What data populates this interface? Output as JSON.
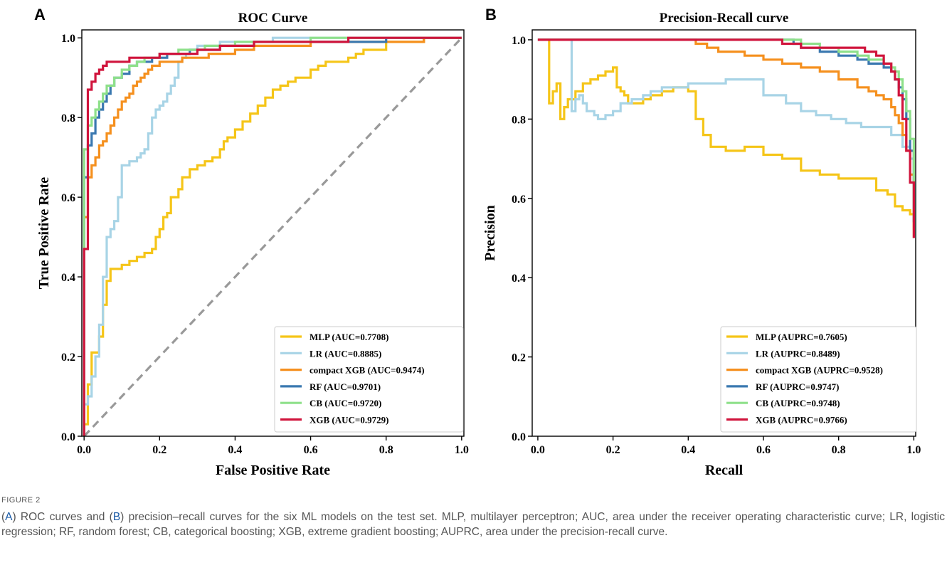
{
  "figure": {
    "label": "FIGURE 2",
    "caption_parts": [
      {
        "text": "(",
        "link": false
      },
      {
        "text": "A",
        "link": true
      },
      {
        "text": ") ROC curves and (",
        "link": false
      },
      {
        "text": "B",
        "link": true
      },
      {
        "text": ") precision–recall curves for the six ML models on the test set. MLP, multilayer perceptron; AUC, area under the receiver operating characteristic curve; LR, logistic regression; RF, random forest; CB, categorical boosting; XGB, extreme gradient boosting; AUPRC, area under the precision-recall curve.",
        "link": false
      }
    ]
  },
  "colors": {
    "MLP": "#f5c518",
    "LR": "#a8d4e6",
    "compact XGB": "#f5901e",
    "RF": "#3a78b0",
    "CB": "#8ee08a",
    "XGB": "#d0143c",
    "diagonal": "#999999",
    "link": "#1a5aa6"
  },
  "chart_data": [
    {
      "panel": "A",
      "type": "line",
      "title": "ROC Curve",
      "xlabel": "False Positive Rate",
      "ylabel": "True Positive Rate",
      "xlim": [
        0,
        1
      ],
      "ylim": [
        0,
        1.02
      ],
      "xticks": [
        "0.0",
        "0.2",
        "0.4",
        "0.6",
        "0.8",
        "1.0"
      ],
      "yticks": [
        "0.0",
        "0.2",
        "0.4",
        "0.6",
        "0.8",
        "1.0"
      ],
      "grid": false,
      "legend_position": "lower-right",
      "diagonal": true,
      "series": [
        {
          "name": "MLP (AUC=0.7708)",
          "key": "MLP",
          "x": [
            0.0,
            0.0,
            0.01,
            0.01,
            0.02,
            0.02,
            0.04,
            0.04,
            0.05,
            0.05,
            0.06,
            0.06,
            0.07,
            0.07,
            0.1,
            0.12,
            0.14,
            0.16,
            0.18,
            0.19,
            0.2,
            0.21,
            0.22,
            0.23,
            0.25,
            0.26,
            0.28,
            0.3,
            0.32,
            0.34,
            0.36,
            0.37,
            0.38,
            0.4,
            0.42,
            0.44,
            0.46,
            0.48,
            0.5,
            0.52,
            0.54,
            0.56,
            0.58,
            0.6,
            0.62,
            0.64,
            0.66,
            0.7,
            0.72,
            0.74,
            0.8,
            0.85,
            0.9,
            1.0
          ],
          "y": [
            0.0,
            0.03,
            0.08,
            0.13,
            0.19,
            0.21,
            0.23,
            0.25,
            0.29,
            0.33,
            0.35,
            0.39,
            0.4,
            0.42,
            0.43,
            0.44,
            0.45,
            0.46,
            0.47,
            0.5,
            0.52,
            0.55,
            0.56,
            0.6,
            0.62,
            0.65,
            0.67,
            0.68,
            0.69,
            0.7,
            0.72,
            0.74,
            0.75,
            0.77,
            0.79,
            0.81,
            0.83,
            0.85,
            0.87,
            0.88,
            0.89,
            0.9,
            0.9,
            0.92,
            0.93,
            0.94,
            0.94,
            0.95,
            0.96,
            0.97,
            0.99,
            0.99,
            1.0,
            1.0
          ]
        },
        {
          "name": "LR (AUC=0.8885)",
          "key": "LR",
          "x": [
            0.0,
            0.0,
            0.01,
            0.02,
            0.03,
            0.04,
            0.05,
            0.05,
            0.06,
            0.06,
            0.07,
            0.08,
            0.09,
            0.09,
            0.1,
            0.11,
            0.12,
            0.13,
            0.14,
            0.15,
            0.16,
            0.17,
            0.18,
            0.19,
            0.2,
            0.21,
            0.22,
            0.23,
            0.24,
            0.25,
            0.26,
            0.27,
            0.28,
            0.3,
            0.33,
            0.36,
            0.4,
            0.45,
            0.5,
            0.6,
            0.7,
            0.8,
            1.0
          ],
          "y": [
            0.0,
            0.08,
            0.1,
            0.15,
            0.2,
            0.28,
            0.33,
            0.4,
            0.44,
            0.5,
            0.52,
            0.54,
            0.55,
            0.6,
            0.68,
            0.68,
            0.69,
            0.69,
            0.7,
            0.71,
            0.72,
            0.76,
            0.8,
            0.82,
            0.83,
            0.84,
            0.86,
            0.88,
            0.9,
            0.94,
            0.95,
            0.96,
            0.97,
            0.98,
            0.98,
            0.99,
            0.99,
            0.99,
            1.0,
            1.0,
            1.0,
            1.0,
            1.0
          ]
        },
        {
          "name": "compact XGB (AUC=0.9474)",
          "key": "compact XGB",
          "x": [
            0.0,
            0.0,
            0.01,
            0.01,
            0.02,
            0.03,
            0.04,
            0.05,
            0.06,
            0.07,
            0.08,
            0.09,
            0.1,
            0.11,
            0.12,
            0.13,
            0.14,
            0.15,
            0.16,
            0.17,
            0.18,
            0.19,
            0.2,
            0.22,
            0.24,
            0.26,
            0.28,
            0.3,
            0.33,
            0.36,
            0.4,
            0.45,
            0.5,
            0.55,
            0.6,
            0.65,
            0.7,
            0.8,
            0.9,
            1.0
          ],
          "y": [
            0.0,
            0.55,
            0.6,
            0.65,
            0.68,
            0.7,
            0.73,
            0.74,
            0.76,
            0.78,
            0.8,
            0.82,
            0.84,
            0.85,
            0.86,
            0.88,
            0.89,
            0.9,
            0.91,
            0.92,
            0.93,
            0.93,
            0.94,
            0.94,
            0.94,
            0.95,
            0.95,
            0.95,
            0.96,
            0.96,
            0.97,
            0.98,
            0.98,
            0.98,
            0.99,
            0.99,
            0.99,
            0.99,
            1.0,
            1.0
          ]
        },
        {
          "name": "RF (AUC=0.9701)",
          "key": "RF",
          "x": [
            0.0,
            0.0,
            0.01,
            0.01,
            0.02,
            0.02,
            0.03,
            0.04,
            0.05,
            0.06,
            0.07,
            0.08,
            0.1,
            0.12,
            0.14,
            0.16,
            0.18,
            0.2,
            0.22,
            0.25,
            0.28,
            0.32,
            0.36,
            0.4,
            0.45,
            0.5,
            0.6,
            0.7,
            0.8,
            0.9,
            1.0
          ],
          "y": [
            0.0,
            0.65,
            0.66,
            0.73,
            0.74,
            0.76,
            0.8,
            0.82,
            0.84,
            0.86,
            0.88,
            0.9,
            0.91,
            0.93,
            0.94,
            0.94,
            0.95,
            0.95,
            0.96,
            0.96,
            0.97,
            0.97,
            0.98,
            0.98,
            0.99,
            0.99,
            0.99,
            0.99,
            1.0,
            1.0,
            1.0
          ]
        },
        {
          "name": "CB (AUC=0.9720)",
          "key": "CB",
          "x": [
            0.0,
            0.0,
            0.01,
            0.02,
            0.03,
            0.04,
            0.05,
            0.06,
            0.08,
            0.1,
            0.12,
            0.14,
            0.16,
            0.18,
            0.2,
            0.22,
            0.25,
            0.28,
            0.32,
            0.36,
            0.4,
            0.45,
            0.5,
            0.6,
            0.7,
            0.8,
            0.9,
            1.0
          ],
          "y": [
            0.0,
            0.72,
            0.78,
            0.8,
            0.82,
            0.84,
            0.86,
            0.88,
            0.9,
            0.92,
            0.93,
            0.94,
            0.95,
            0.95,
            0.96,
            0.96,
            0.97,
            0.97,
            0.98,
            0.98,
            0.99,
            0.99,
            0.99,
            1.0,
            1.0,
            1.0,
            1.0,
            1.0
          ]
        },
        {
          "name": "XGB (AUC=0.9729)",
          "key": "XGB",
          "x": [
            0.0,
            0.0,
            0.01,
            0.01,
            0.02,
            0.02,
            0.03,
            0.03,
            0.04,
            0.04,
            0.05,
            0.06,
            0.08,
            0.1,
            0.12,
            0.15,
            0.2,
            0.25,
            0.3,
            0.33,
            0.36,
            0.4,
            0.45,
            0.5,
            0.6,
            0.7,
            0.8,
            0.9,
            1.0
          ],
          "y": [
            0.0,
            0.47,
            0.8,
            0.87,
            0.87,
            0.89,
            0.89,
            0.91,
            0.91,
            0.92,
            0.93,
            0.94,
            0.94,
            0.94,
            0.95,
            0.95,
            0.96,
            0.96,
            0.97,
            0.97,
            0.98,
            0.98,
            0.99,
            0.99,
            0.99,
            1.0,
            1.0,
            1.0,
            1.0
          ]
        }
      ]
    },
    {
      "panel": "B",
      "type": "line",
      "title": "Precision-Recall curve",
      "xlabel": "Recall",
      "ylabel": "Precision",
      "xlim": [
        0,
        1
      ],
      "ylim": [
        0,
        1.02
      ],
      "xticks": [
        "0.0",
        "0.2",
        "0.4",
        "0.6",
        "0.8",
        "1.0"
      ],
      "yticks": [
        "0.0",
        "0.2",
        "0.4",
        "0.6",
        "0.8",
        "1.0"
      ],
      "grid": false,
      "legend_position": "lower-right",
      "diagonal": false,
      "series": [
        {
          "name": "MLP (AUPRC=0.7605)",
          "key": "MLP",
          "x": [
            0.03,
            0.03,
            0.04,
            0.05,
            0.06,
            0.07,
            0.08,
            0.1,
            0.12,
            0.14,
            0.16,
            0.18,
            0.2,
            0.21,
            0.22,
            0.23,
            0.24,
            0.26,
            0.28,
            0.3,
            0.33,
            0.36,
            0.38,
            0.4,
            0.42,
            0.44,
            0.46,
            0.5,
            0.55,
            0.6,
            0.65,
            0.7,
            0.75,
            0.8,
            0.85,
            0.9,
            0.93,
            0.95,
            0.97,
            0.99,
            1.0
          ],
          "y": [
            1.0,
            0.84,
            0.87,
            0.89,
            0.8,
            0.83,
            0.85,
            0.87,
            0.89,
            0.9,
            0.91,
            0.92,
            0.93,
            0.88,
            0.87,
            0.86,
            0.84,
            0.84,
            0.85,
            0.86,
            0.87,
            0.88,
            0.88,
            0.87,
            0.8,
            0.76,
            0.73,
            0.72,
            0.73,
            0.71,
            0.7,
            0.67,
            0.66,
            0.65,
            0.65,
            0.62,
            0.61,
            0.58,
            0.57,
            0.56,
            0.52
          ]
        },
        {
          "name": "LR (AUPRC=0.8489)",
          "key": "LR",
          "x": [
            0.09,
            0.09,
            0.1,
            0.11,
            0.12,
            0.13,
            0.14,
            0.15,
            0.16,
            0.17,
            0.18,
            0.2,
            0.22,
            0.25,
            0.28,
            0.3,
            0.33,
            0.36,
            0.4,
            0.45,
            0.5,
            0.55,
            0.6,
            0.63,
            0.66,
            0.7,
            0.74,
            0.78,
            0.82,
            0.86,
            0.9,
            0.94,
            0.97,
            0.99,
            1.0
          ],
          "y": [
            1.0,
            0.82,
            0.85,
            0.86,
            0.84,
            0.82,
            0.82,
            0.81,
            0.8,
            0.8,
            0.81,
            0.82,
            0.84,
            0.85,
            0.86,
            0.87,
            0.88,
            0.88,
            0.89,
            0.89,
            0.9,
            0.9,
            0.86,
            0.86,
            0.84,
            0.82,
            0.81,
            0.8,
            0.79,
            0.78,
            0.78,
            0.76,
            0.73,
            0.7,
            0.54
          ]
        },
        {
          "name": "compact XGB (AUPRC=0.9528)",
          "key": "compact XGB",
          "x": [
            0.0,
            0.4,
            0.42,
            0.45,
            0.48,
            0.5,
            0.55,
            0.6,
            0.65,
            0.7,
            0.75,
            0.8,
            0.85,
            0.88,
            0.9,
            0.92,
            0.94,
            0.95,
            0.96,
            0.97,
            0.98,
            0.99,
            1.0
          ],
          "y": [
            1.0,
            1.0,
            0.99,
            0.98,
            0.97,
            0.97,
            0.96,
            0.95,
            0.94,
            0.93,
            0.92,
            0.9,
            0.88,
            0.87,
            0.86,
            0.85,
            0.83,
            0.81,
            0.79,
            0.76,
            0.72,
            0.66,
            0.5
          ]
        },
        {
          "name": "RF (AUPRC=0.9747)",
          "key": "RF",
          "x": [
            0.0,
            0.5,
            0.6,
            0.66,
            0.68,
            0.7,
            0.75,
            0.8,
            0.85,
            0.88,
            0.9,
            0.92,
            0.94,
            0.95,
            0.96,
            0.97,
            0.98,
            0.99,
            1.0
          ],
          "y": [
            1.0,
            1.0,
            1.0,
            1.0,
            0.99,
            0.98,
            0.97,
            0.96,
            0.95,
            0.94,
            0.94,
            0.93,
            0.92,
            0.9,
            0.88,
            0.85,
            0.8,
            0.72,
            0.54
          ]
        },
        {
          "name": "CB (AUPRC=0.9748)",
          "key": "CB",
          "x": [
            0.0,
            0.5,
            0.6,
            0.7,
            0.75,
            0.8,
            0.85,
            0.88,
            0.9,
            0.92,
            0.94,
            0.95,
            0.96,
            0.97,
            0.98,
            0.99,
            1.0
          ],
          "y": [
            1.0,
            1.0,
            1.0,
            0.99,
            0.98,
            0.97,
            0.96,
            0.95,
            0.95,
            0.94,
            0.93,
            0.92,
            0.9,
            0.87,
            0.82,
            0.75,
            0.55
          ]
        },
        {
          "name": "XGB (AUPRC=0.9766)",
          "key": "XGB",
          "x": [
            0.0,
            0.6,
            0.65,
            0.7,
            0.75,
            0.8,
            0.85,
            0.87,
            0.88,
            0.9,
            0.92,
            0.94,
            0.95,
            0.96,
            0.97,
            0.98,
            0.99,
            1.0
          ],
          "y": [
            1.0,
            1.0,
            0.99,
            0.98,
            0.98,
            0.98,
            0.98,
            0.97,
            0.97,
            0.96,
            0.94,
            0.92,
            0.9,
            0.86,
            0.8,
            0.72,
            0.64,
            0.5
          ]
        }
      ]
    }
  ]
}
